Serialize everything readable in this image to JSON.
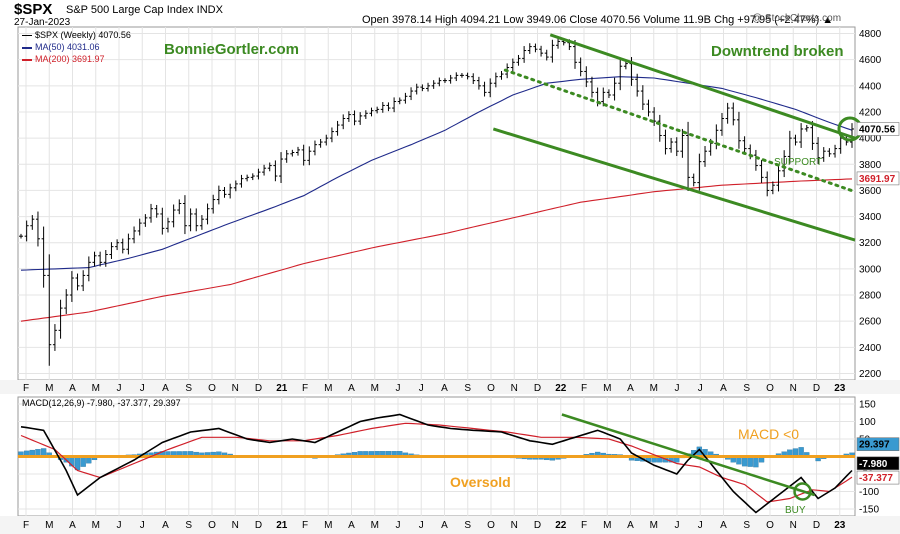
{
  "header": {
    "symbol": "$SPX",
    "name": "S&P 500 Large Cap Index INDX",
    "date": "27-Jan-2023",
    "ohlc": "Open 3978.14  High 4094.21  Low 3949.06  Close 4070.56  Volume 11.9B  Chg +97.95 (+2.47%) ▲",
    "brand": "@ StockCharts.com"
  },
  "legend": {
    "price": "$SPX (Weekly) 4070.56",
    "ma50": "MA(50) 4031.06",
    "ma200": "MA(200) 3691.97",
    "macd": "MACD(12,26,9) -7.980, -37.377, 29.397"
  },
  "annotations": {
    "brand_site": "BonnieGortler.com",
    "downtrend": "Downtrend broken",
    "support": "SUPPORT",
    "macd_lt0": "MACD <0",
    "oversold": "Oversold",
    "buy": "BUY"
  },
  "colors": {
    "price_bar": "#000000",
    "ma50": "#1f2a8a",
    "ma200": "#d0202a",
    "trend": "#3c8a22",
    "macd_line": "#000000",
    "signal_line": "#d0202a",
    "histogram": "#3a9ad0",
    "zero_line": "#f0a020",
    "grid": "#e4e4e4",
    "callout_green": "#3c8a22",
    "callout_orange": "#f0a020"
  },
  "chart_data": [
    {
      "type": "ohlc",
      "title": "$SPX (Weekly)",
      "y_axis_side": "right",
      "ylim": [
        2150,
        4850
      ],
      "y_ticks": [
        2200,
        2400,
        2600,
        2800,
        3000,
        3200,
        3400,
        3600,
        3800,
        4000,
        4200,
        4400,
        4600,
        4800
      ],
      "x_ticks": [
        "F",
        "M",
        "A",
        "M",
        "J",
        "J",
        "A",
        "S",
        "O",
        "N",
        "D",
        "21",
        "F",
        "M",
        "A",
        "M",
        "J",
        "J",
        "A",
        "S",
        "O",
        "N",
        "D",
        "22",
        "F",
        "M",
        "A",
        "M",
        "J",
        "J",
        "A",
        "S",
        "O",
        "N",
        "D",
        "23"
      ],
      "price_labels": [
        "4070.56",
        "3691.97"
      ],
      "series": [
        {
          "name": "$SPX (Weekly)",
          "closes": [
            3250,
            3330,
            3380,
            3230,
            2950,
            2420,
            2530,
            2700,
            2800,
            2930,
            2870,
            2950,
            3050,
            3100,
            3050,
            3110,
            3170,
            3200,
            3150,
            3230,
            3290,
            3350,
            3390,
            3460,
            3420,
            3310,
            3360,
            3450,
            3500,
            3330,
            3420,
            3330,
            3380,
            3460,
            3530,
            3600,
            3570,
            3620,
            3650,
            3690,
            3700,
            3710,
            3740,
            3770,
            3790,
            3710,
            3840,
            3880,
            3890,
            3910,
            3830,
            3900,
            3950,
            3970,
            4000,
            4050,
            4100,
            4150,
            4180,
            4130,
            4170,
            4190,
            4210,
            4220,
            4250,
            4230,
            4280,
            4290,
            4320,
            4360,
            4390,
            4380,
            4400,
            4420,
            4440,
            4440,
            4460,
            4480,
            4480,
            4470,
            4440,
            4400,
            4350,
            4420,
            4470,
            4490,
            4540,
            4580,
            4610,
            4670,
            4700,
            4680,
            4650,
            4620,
            4710,
            4740,
            4730,
            4700,
            4580,
            4510,
            4430,
            4350,
            4280,
            4350,
            4330,
            4420,
            4550,
            4570,
            4450,
            4360,
            4260,
            4200,
            4130,
            4020,
            3920,
            3970,
            3900,
            4020,
            3700,
            3660,
            3820,
            3900,
            3960,
            4060,
            4150,
            4230,
            4140,
            3980,
            3920,
            3870,
            3790,
            3700,
            3600,
            3640,
            3750,
            3860,
            4000,
            3970,
            4070,
            4080,
            3960,
            3850,
            3900,
            3880,
            3920,
            4000,
            3970,
            4070
          ],
          "ohlc_last": {
            "open": 3978.14,
            "high": 4094.21,
            "low": 3949.06,
            "close": 4070.56
          }
        },
        {
          "name": "MA(50)",
          "last": 4031.06,
          "anchors": [
            [
              0,
              2990
            ],
            [
              6,
              3000
            ],
            [
              12,
              3010
            ],
            [
              19,
              3080
            ],
            [
              25,
              3150
            ],
            [
              31,
              3250
            ],
            [
              37,
              3350
            ],
            [
              44,
              3460
            ],
            [
              50,
              3560
            ],
            [
              56,
              3700
            ],
            [
              62,
              3830
            ],
            [
              69,
              3950
            ],
            [
              75,
              4060
            ],
            [
              81,
              4200
            ],
            [
              87,
              4330
            ],
            [
              93,
              4420
            ],
            [
              99,
              4450
            ],
            [
              106,
              4470
            ],
            [
              112,
              4460
            ],
            [
              118,
              4420
            ],
            [
              124,
              4380
            ],
            [
              130,
              4310
            ],
            [
              137,
              4220
            ],
            [
              143,
              4120
            ],
            [
              149,
              4031
            ]
          ]
        },
        {
          "name": "MA(200)",
          "last": 3691.97,
          "anchors": [
            [
              0,
              2600
            ],
            [
              12,
              2670
            ],
            [
              25,
              2790
            ],
            [
              37,
              2880
            ],
            [
              50,
              3040
            ],
            [
              62,
              3160
            ],
            [
              75,
              3270
            ],
            [
              87,
              3390
            ],
            [
              99,
              3510
            ],
            [
              112,
              3590
            ],
            [
              124,
              3640
            ],
            [
              137,
              3670
            ],
            [
              149,
              3692
            ]
          ]
        }
      ],
      "trendlines": [
        {
          "name": "upper channel",
          "from": {
            "x": "Dec 2021",
            "y": 4790
          },
          "to": {
            "x": "Jan 2023",
            "y": 4000
          }
        },
        {
          "name": "lower channel",
          "from": {
            "x": "Oct 2021",
            "y": 4070
          },
          "to": {
            "x": "Jan 2023",
            "y": 3220
          }
        },
        {
          "name": "support (dotted)",
          "from": {
            "x": "Oct 2021",
            "y": 4520
          },
          "to": {
            "x": "Jan 2023",
            "y": 3590
          }
        }
      ]
    },
    {
      "type": "macd",
      "title": "MACD(12,26,9)",
      "y_axis_side": "right",
      "ylim": [
        -170,
        170
      ],
      "y_ticks": [
        150,
        100,
        50,
        -50,
        -100,
        -150
      ],
      "x_ticks": [
        "F",
        "M",
        "A",
        "M",
        "J",
        "J",
        "A",
        "S",
        "O",
        "N",
        "D",
        "21",
        "F",
        "M",
        "A",
        "M",
        "J",
        "J",
        "A",
        "S",
        "O",
        "N",
        "D",
        "22",
        "F",
        "M",
        "A",
        "M",
        "J",
        "J",
        "A",
        "S",
        "O",
        "N",
        "D",
        "23"
      ],
      "value_labels": [
        "29.397",
        "-7.980",
        "-37.377"
      ],
      "series": [
        {
          "name": "MACD",
          "last": -7.98,
          "anchors": [
            [
              0,
              85
            ],
            [
              4,
              75
            ],
            [
              8,
              -40
            ],
            [
              10,
              -110
            ],
            [
              14,
              -60
            ],
            [
              20,
              -10
            ],
            [
              25,
              40
            ],
            [
              30,
              70
            ],
            [
              35,
              80
            ],
            [
              40,
              50
            ],
            [
              44,
              40
            ],
            [
              48,
              50
            ],
            [
              52,
              40
            ],
            [
              56,
              70
            ],
            [
              60,
              100
            ],
            [
              63,
              110
            ],
            [
              67,
              120
            ],
            [
              72,
              90
            ],
            [
              76,
              80
            ],
            [
              80,
              75
            ],
            [
              85,
              70
            ],
            [
              90,
              45
            ],
            [
              94,
              35
            ],
            [
              98,
              55
            ],
            [
              102,
              75
            ],
            [
              106,
              50
            ],
            [
              108,
              10
            ],
            [
              112,
              -25
            ],
            [
              116,
              -50
            ],
            [
              118,
              -10
            ],
            [
              120,
              20
            ],
            [
              122,
              -20
            ],
            [
              126,
              -100
            ],
            [
              130,
              -160
            ],
            [
              134,
              -110
            ],
            [
              138,
              -60
            ],
            [
              141,
              -120
            ],
            [
              144,
              -90
            ],
            [
              147,
              -40
            ],
            [
              149,
              -8
            ]
          ]
        },
        {
          "name": "Signal",
          "last": -37.377,
          "anchors": [
            [
              0,
              60
            ],
            [
              6,
              20
            ],
            [
              10,
              -40
            ],
            [
              14,
              -60
            ],
            [
              20,
              -20
            ],
            [
              26,
              20
            ],
            [
              32,
              55
            ],
            [
              38,
              55
            ],
            [
              44,
              45
            ],
            [
              50,
              45
            ],
            [
              56,
              60
            ],
            [
              62,
              80
            ],
            [
              68,
              95
            ],
            [
              74,
              90
            ],
            [
              80,
              80
            ],
            [
              86,
              70
            ],
            [
              92,
              55
            ],
            [
              98,
              55
            ],
            [
              104,
              50
            ],
            [
              108,
              30
            ],
            [
              112,
              5
            ],
            [
              116,
              -20
            ],
            [
              120,
              -30
            ],
            [
              124,
              -60
            ],
            [
              128,
              -80
            ],
            [
              132,
              -130
            ],
            [
              136,
              -120
            ],
            [
              140,
              -95
            ],
            [
              143,
              -100
            ],
            [
              146,
              -70
            ],
            [
              149,
              -37
            ]
          ]
        },
        {
          "name": "Histogram",
          "last": 29.397
        }
      ],
      "trendlines": [
        {
          "name": "MACD downtrend",
          "from": {
            "x": "Dec 2021",
            "y": 120
          },
          "to": {
            "x": "Nov 2022",
            "y": -110
          }
        }
      ]
    }
  ]
}
